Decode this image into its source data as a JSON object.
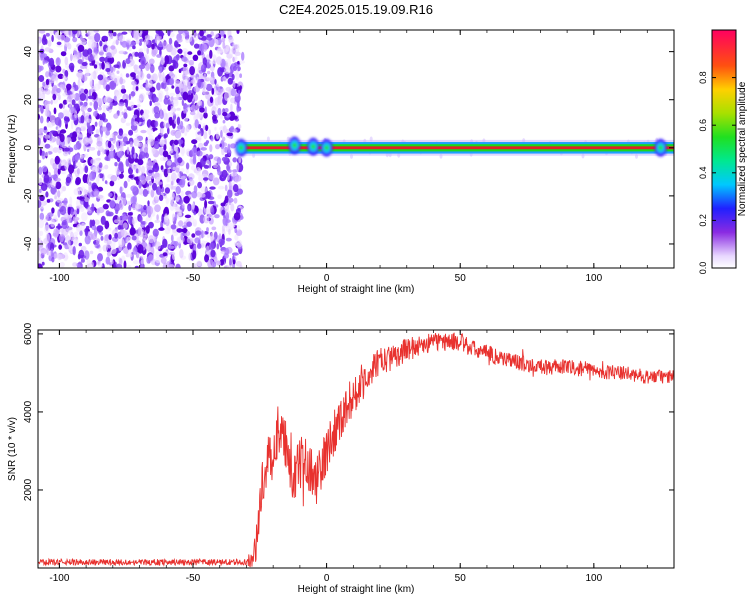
{
  "title": "C2E4.2025.015.19.09.R16",
  "colors": {
    "snr_line": "#e8312e",
    "scatter": "#6a00ee",
    "band_core": "#e0202a",
    "band_mid": "#1cd81c",
    "band_edge": "#1fa0ff"
  },
  "chart_data": [
    {
      "type": "heatmap",
      "name": "spectrogram",
      "xlabel": "Height of straight line (km)",
      "ylabel": "Frequency (Hz)",
      "xlim": [
        -108,
        130
      ],
      "ylim": [
        -50,
        49
      ],
      "xticks": [
        -100,
        -50,
        0,
        50,
        100
      ],
      "yticks": [
        -40,
        -20,
        0,
        20,
        40
      ],
      "noise_region_x": [
        -108,
        -32
      ],
      "signal_band": {
        "x": [
          -32,
          130
        ],
        "frequency": 0,
        "halfwidth": 1.5
      },
      "blobs": [
        {
          "x": -32,
          "y": 0
        },
        {
          "x": -12,
          "y": 1
        },
        {
          "x": -5,
          "y": 0.5
        },
        {
          "x": 0,
          "y": 0
        },
        {
          "x": 125,
          "y": 0
        }
      ],
      "colorbar": {
        "label": "Normalized spectral amplitude",
        "range": [
          0,
          1
        ],
        "ticks": [
          "0.0",
          "0.2",
          "0.4",
          "0.6",
          "0.8"
        ]
      }
    },
    {
      "type": "line",
      "name": "snr",
      "xlabel": "Height of straight line (km)",
      "ylabel": "SNR (10 * v/v)",
      "xlim": [
        -108,
        130
      ],
      "ylim": [
        0,
        6100
      ],
      "xticks": [
        -100,
        -50,
        0,
        50,
        100
      ],
      "yticks": [
        2000,
        4000,
        6000
      ],
      "envelope": {
        "x": [
          -108,
          -30,
          -27,
          -24,
          -22,
          -20,
          -18,
          -16,
          -14,
          -12,
          -10,
          -8,
          -6,
          -4,
          -2,
          0,
          2,
          5,
          8,
          12,
          16,
          20,
          25,
          30,
          35,
          40,
          45,
          50,
          55,
          60,
          70,
          80,
          90,
          100,
          110,
          120,
          130
        ],
        "y": [
          150,
          150,
          300,
          2200,
          2700,
          3000,
          3600,
          3200,
          2700,
          2300,
          2600,
          3000,
          2500,
          2200,
          2500,
          3000,
          3400,
          3800,
          4200,
          4600,
          5000,
          5300,
          5400,
          5600,
          5700,
          5800,
          5800,
          5800,
          5600,
          5500,
          5300,
          5150,
          5150,
          5050,
          5000,
          4900,
          4900
        ]
      },
      "noise_amplitude": {
        "x": [
          -108,
          -30,
          -26,
          -20,
          -10,
          0,
          10,
          20,
          40,
          80,
          130
        ],
        "y": [
          80,
          80,
          500,
          700,
          700,
          650,
          500,
          350,
          250,
          200,
          180
        ]
      }
    }
  ]
}
